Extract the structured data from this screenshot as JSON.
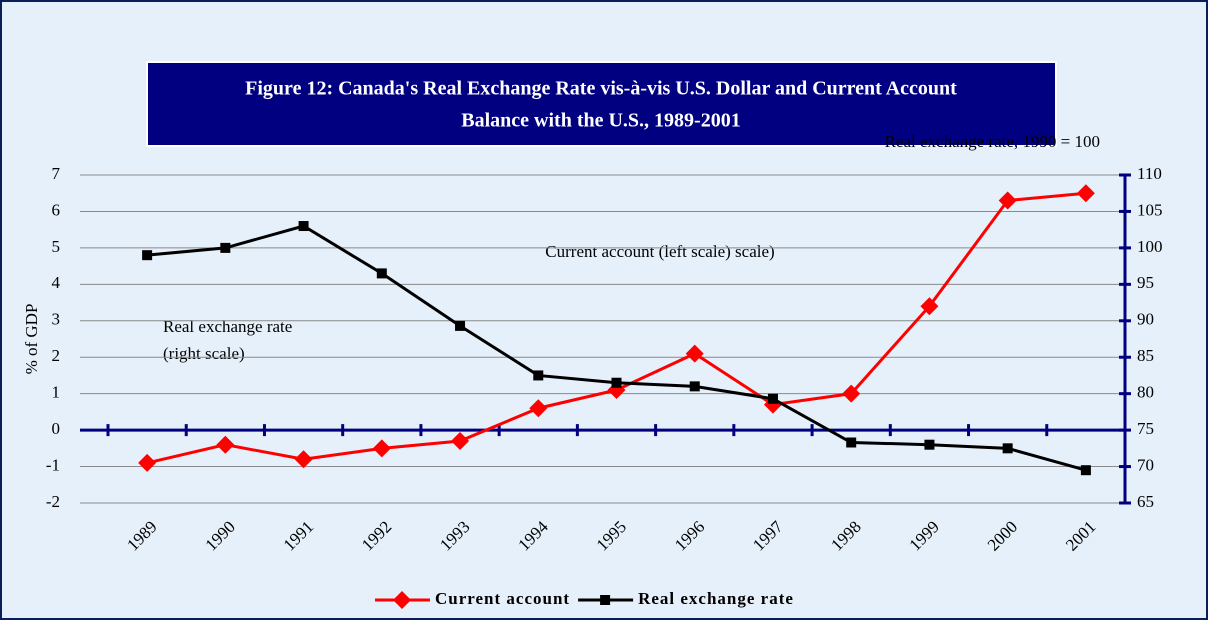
{
  "chart_data": {
    "type": "line",
    "title": "Figure 12: Canada's Real Exchange Rate vis-à-vis U.S. Dollar and Current Account",
    "subtitle": "Balance with the U.S., 1989-2001",
    "ylabel": "% of GDP",
    "y2label": "Real exchange rate, 1990 = 100",
    "annotations": [
      "Current account (left scale) scale)",
      "Real exchange rate",
      "(right scale)"
    ],
    "categories": [
      "1989",
      "1990",
      "1991",
      "1992",
      "1993",
      "1994",
      "1995",
      "1996",
      "1997",
      "1998",
      "1999",
      "2000",
      "2001"
    ],
    "series": [
      {
        "name": "Current account",
        "color": "#ff0000",
        "marker": "diamond",
        "values": [
          -0.9,
          -0.4,
          -0.8,
          -0.5,
          -0.3,
          0.6,
          1.1,
          2.1,
          0.7,
          1.0,
          3.4,
          6.3,
          6.5
        ]
      },
      {
        "name": "Real exchange rate",
        "color": "#000000",
        "marker": "square",
        "axis": "y2",
        "values": [
          99,
          100,
          103,
          96.5,
          89.3,
          82.5,
          81.5,
          81,
          79.3,
          73.3,
          73,
          72.5,
          69.5
        ]
      }
    ],
    "ylim": [
      -2,
      7
    ],
    "yticks": [
      -2,
      -1,
      0,
      1,
      2,
      3,
      4,
      5,
      6,
      7
    ],
    "y2lim": [
      65,
      110
    ],
    "y2ticks": [
      65,
      70,
      75,
      80,
      85,
      90,
      95,
      100,
      105,
      110
    ],
    "grid": true,
    "legend": "bottom"
  }
}
